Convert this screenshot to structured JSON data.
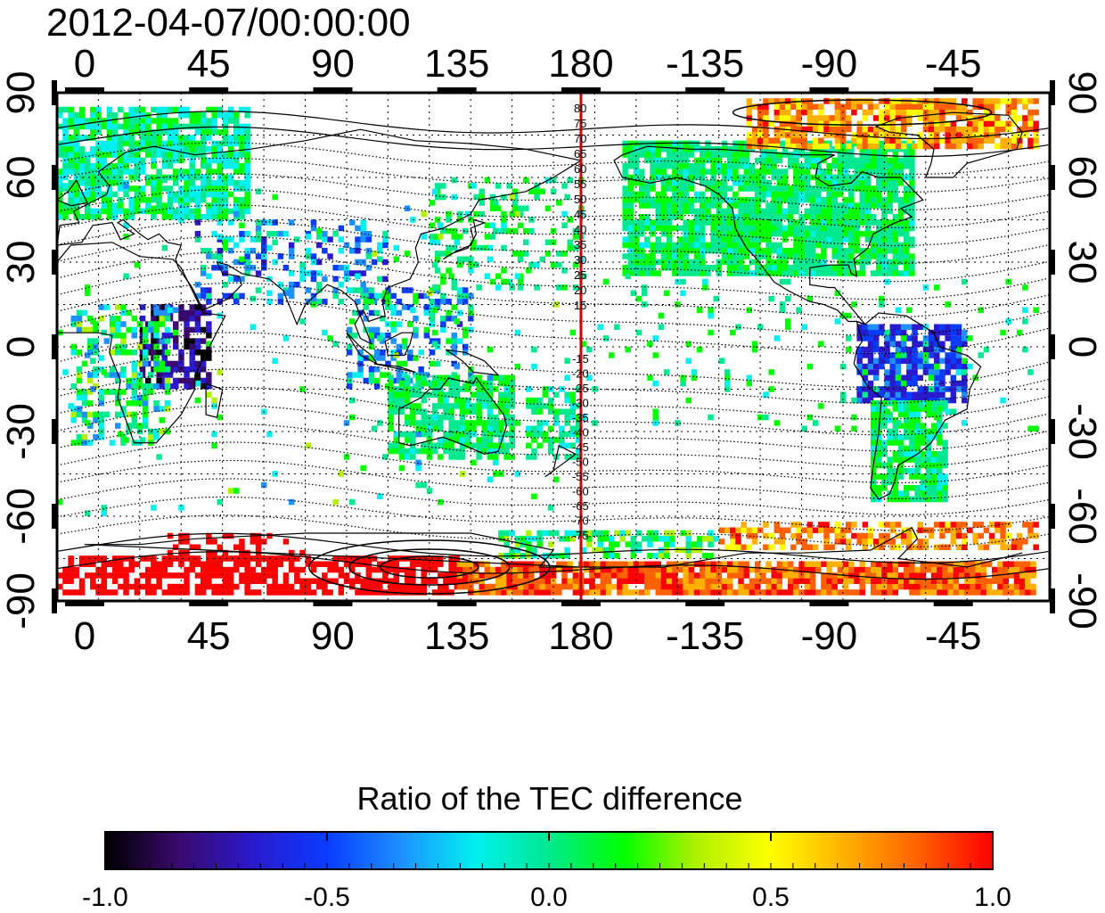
{
  "title": "2012-04-07/00:00:00",
  "colorbar": {
    "title": "Ratio of the TEC difference",
    "ticks": [
      "-1.0",
      "-0.5",
      "0.0",
      "0.5",
      "1.0"
    ],
    "stops": [
      "#000000",
      "#3a0a6e",
      "#2a1acc",
      "#0a3cff",
      "#1e90ff",
      "#00f0f0",
      "#00e890",
      "#00ff00",
      "#b0f000",
      "#ffff00",
      "#ffb000",
      "#ff6000",
      "#ff0000"
    ]
  },
  "map": {
    "lon_ticks": [
      "0",
      "45",
      "90",
      "135",
      "180",
      "-135",
      "-90",
      "-45"
    ],
    "lon_values": [
      0,
      45,
      90,
      135,
      180,
      225,
      270,
      315
    ],
    "lat_ticks": [
      "-90",
      "-60",
      "-30",
      "0",
      "30",
      "60",
      "90"
    ],
    "lat_values": [
      -90,
      -60,
      -30,
      0,
      30,
      60,
      90
    ],
    "lon_range": [
      -10,
      350
    ],
    "lat_range": [
      -90,
      90
    ],
    "terminator_lon": 180,
    "terminator_color": "#cc0000",
    "mlat_labels_north": [
      "80",
      "75",
      "70",
      "65",
      "60",
      "55",
      "50",
      "45",
      "40",
      "35",
      "30",
      "25",
      "20",
      "15"
    ],
    "mlat_labels_south": [
      "-15",
      "-20",
      "-25",
      "-30",
      "-35",
      "-40",
      "-45",
      "-50",
      "-55",
      "-60",
      "-65",
      "-70",
      "-75"
    ]
  }
}
